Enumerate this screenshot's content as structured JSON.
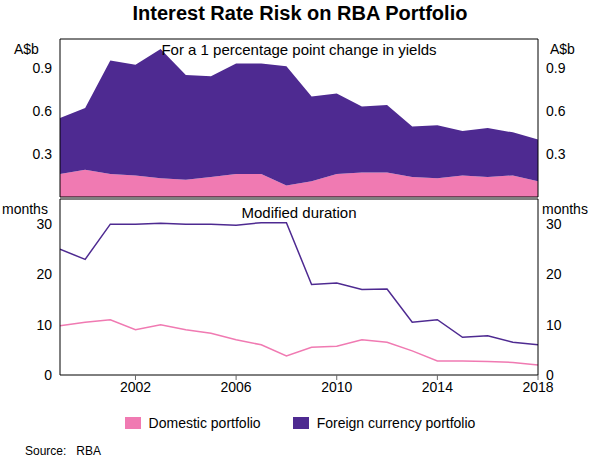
{
  "chart_data": [
    {
      "type": "area",
      "title": "Interest Rate Risk on RBA Portfolio",
      "subtitle": "For a 1 percentage point change in yields",
      "y_label": "A$b",
      "stacked": true,
      "legend": "bottom",
      "x": [
        1999,
        2000,
        2001,
        2002,
        2003,
        2004,
        2005,
        2006,
        2007,
        2008,
        2009,
        2010,
        2011,
        2012,
        2013,
        2014,
        2015,
        2016,
        2017,
        2018
      ],
      "xlim": [
        1999,
        2018
      ],
      "xticks": [
        2002,
        2006,
        2010,
        2014,
        2018
      ],
      "ylim": [
        0,
        1.1
      ],
      "yticks": [
        0.3,
        0.6,
        0.9
      ],
      "tick_labels": "y",
      "series": [
        {
          "name": "Domestic portfolio",
          "color": "#f07ab2",
          "values": [
            0.16,
            0.19,
            0.16,
            0.15,
            0.13,
            0.12,
            0.14,
            0.16,
            0.16,
            0.08,
            0.11,
            0.16,
            0.17,
            0.17,
            0.14,
            0.13,
            0.15,
            0.14,
            0.15,
            0.11
          ]
        },
        {
          "name": "Foreign currency portfolio",
          "color": "#4e2a91",
          "values": [
            0.39,
            0.43,
            0.79,
            0.77,
            0.9,
            0.73,
            0.7,
            0.77,
            0.77,
            0.83,
            0.59,
            0.56,
            0.46,
            0.47,
            0.35,
            0.37,
            0.31,
            0.34,
            0.3,
            0.29
          ]
        }
      ]
    },
    {
      "type": "line",
      "subtitle": "Modified duration",
      "y_label": "months",
      "source": "Source:   RBA",
      "x": [
        1999,
        2000,
        2001,
        2002,
        2003,
        2004,
        2005,
        2006,
        2007,
        2008,
        2009,
        2010,
        2011,
        2012,
        2013,
        2014,
        2015,
        2016,
        2017,
        2018
      ],
      "xlim": [
        1999,
        2018
      ],
      "xticks": [
        2002,
        2006,
        2010,
        2014,
        2018
      ],
      "ylim": [
        0,
        35
      ],
      "yticks": [
        0,
        10,
        20,
        30
      ],
      "series": [
        {
          "name": "Domestic portfolio",
          "color": "#f07ab2",
          "values": [
            9.8,
            10.5,
            11,
            9,
            10,
            9,
            8.3,
            7,
            6,
            3.8,
            5.5,
            5.7,
            7,
            6.5,
            4.8,
            2.8,
            2.8,
            2.7,
            2.5,
            2.0
          ]
        },
        {
          "name": "Foreign currency portfolio",
          "color": "#4e2a91",
          "values": [
            25,
            23,
            30,
            30,
            30.2,
            30,
            30,
            29.8,
            30.3,
            30.3,
            18,
            18.3,
            17,
            17.1,
            10.5,
            11,
            7.5,
            7.8,
            6.5,
            6
          ]
        }
      ]
    }
  ]
}
